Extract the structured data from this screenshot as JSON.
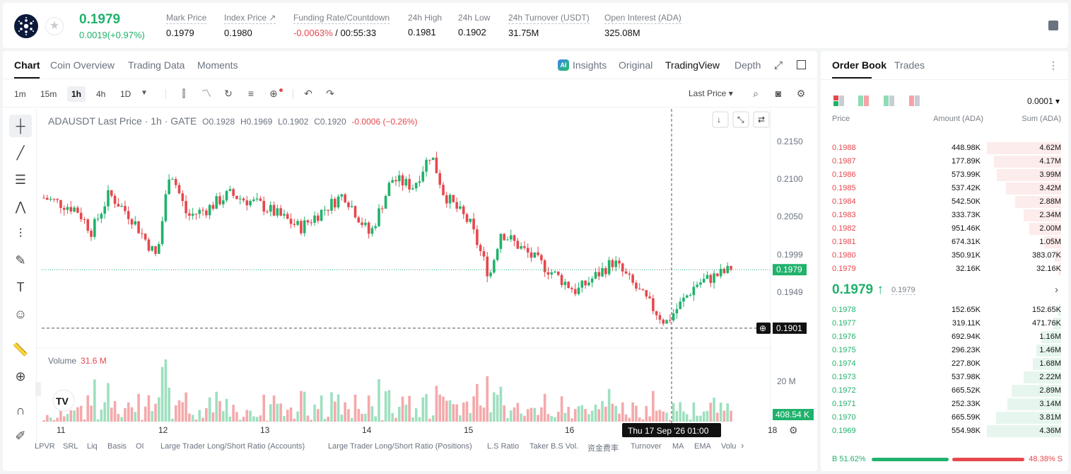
{
  "ticker": {
    "last": "0.1979",
    "change": "0.0019(+0.97%)"
  },
  "stats": [
    {
      "label": "Mark Price",
      "value": "0.1979"
    },
    {
      "label": "Index Price ↗",
      "value": "0.1980"
    },
    {
      "label": "Funding Rate/Countdown",
      "value_red": "-0.0063%",
      "value": " / 00:55:33"
    },
    {
      "label": "24h High",
      "value": "0.1981"
    },
    {
      "label": "24h Low",
      "value": "0.1902"
    },
    {
      "label": "24h Turnover (USDT)",
      "value": "31.75M"
    },
    {
      "label": "Open Interest (ADA)",
      "value": "325.08M"
    }
  ],
  "chart_tabs": [
    "Chart",
    "Coin Overview",
    "Trading Data",
    "Moments"
  ],
  "view_tabs": [
    "Insights",
    "Original",
    "TradingView",
    "Depth"
  ],
  "timeframes": [
    "1m",
    "15m",
    "1h",
    "4h",
    "1D"
  ],
  "price_type": "Last Price ▾",
  "legend": {
    "symbol": "ADAUSDT Last Price · 1h · GATE",
    "o": "O0.1928",
    "h": "H0.1969",
    "l": "L0.1902",
    "c": "C0.1920",
    "chg": "-0.0006 (−0.26%)"
  },
  "volume_legend": {
    "label": "Volume",
    "value": "31.6 M"
  },
  "price_axis": [
    "0.2150",
    "0.2100",
    "0.2050",
    "0.1999",
    "0.1949"
  ],
  "current_price_tag": "0.1979",
  "cursor_price_tag": "0.1901",
  "volume_axis": "20 M",
  "volume_tag": "408.54 K",
  "time_axis": [
    "11",
    "12",
    "13",
    "14",
    "15",
    "16",
    "18"
  ],
  "crosshair_time": "Thu 17 Sep '26   01:00",
  "bottom_indicators": [
    "LPVR",
    "SRL",
    "Liq",
    "Basis",
    "OI",
    "Large Trader Long/Short Ratio (Accounts)",
    "Large Trader Long/Short Ratio (Positions)",
    "L.S Ratio",
    "Taker B.S Vol.",
    "资金费率",
    "Turnover",
    "MA",
    "EMA",
    "Volu"
  ],
  "orderbook": {
    "tabs": [
      "Order Book",
      "Trades"
    ],
    "precision": "0.0001 ▾",
    "headers": [
      "Price",
      "Amount (ADA)",
      "Sum (ADA)"
    ],
    "asks": [
      {
        "price": "0.1988",
        "amount": "448.98K",
        "sum": "4.62M"
      },
      {
        "price": "0.1987",
        "amount": "177.89K",
        "sum": "4.17M"
      },
      {
        "price": "0.1986",
        "amount": "573.99K",
        "sum": "3.99M"
      },
      {
        "price": "0.1985",
        "amount": "537.42K",
        "sum": "3.42M"
      },
      {
        "price": "0.1984",
        "amount": "542.50K",
        "sum": "2.88M"
      },
      {
        "price": "0.1983",
        "amount": "333.73K",
        "sum": "2.34M"
      },
      {
        "price": "0.1982",
        "amount": "951.46K",
        "sum": "2.00M"
      },
      {
        "price": "0.1981",
        "amount": "674.31K",
        "sum": "1.05M"
      },
      {
        "price": "0.1980",
        "amount": "350.91K",
        "sum": "383.07K"
      },
      {
        "price": "0.1979",
        "amount": "32.16K",
        "sum": "32.16K"
      }
    ],
    "mid_price": "0.1979 ↑",
    "mark_price": "0.1979",
    "bids": [
      {
        "price": "0.1978",
        "amount": "152.65K",
        "sum": "152.65K"
      },
      {
        "price": "0.1977",
        "amount": "319.11K",
        "sum": "471.76K"
      },
      {
        "price": "0.1976",
        "amount": "692.94K",
        "sum": "1.16M"
      },
      {
        "price": "0.1975",
        "amount": "296.23K",
        "sum": "1.46M"
      },
      {
        "price": "0.1974",
        "amount": "227.80K",
        "sum": "1.68M"
      },
      {
        "price": "0.1973",
        "amount": "537.98K",
        "sum": "2.22M"
      },
      {
        "price": "0.1972",
        "amount": "665.52K",
        "sum": "2.89M"
      },
      {
        "price": "0.1971",
        "amount": "252.33K",
        "sum": "3.14M"
      },
      {
        "price": "0.1970",
        "amount": "665.59K",
        "sum": "3.81M"
      },
      {
        "price": "0.1969",
        "amount": "554.98K",
        "sum": "4.36M"
      }
    ],
    "buy_ratio": "B 51.62%",
    "sell_ratio": "48.38% S",
    "buy_fraction": 0.5162
  },
  "colors": {
    "up": "#20b26c",
    "down": "#e5484d"
  }
}
